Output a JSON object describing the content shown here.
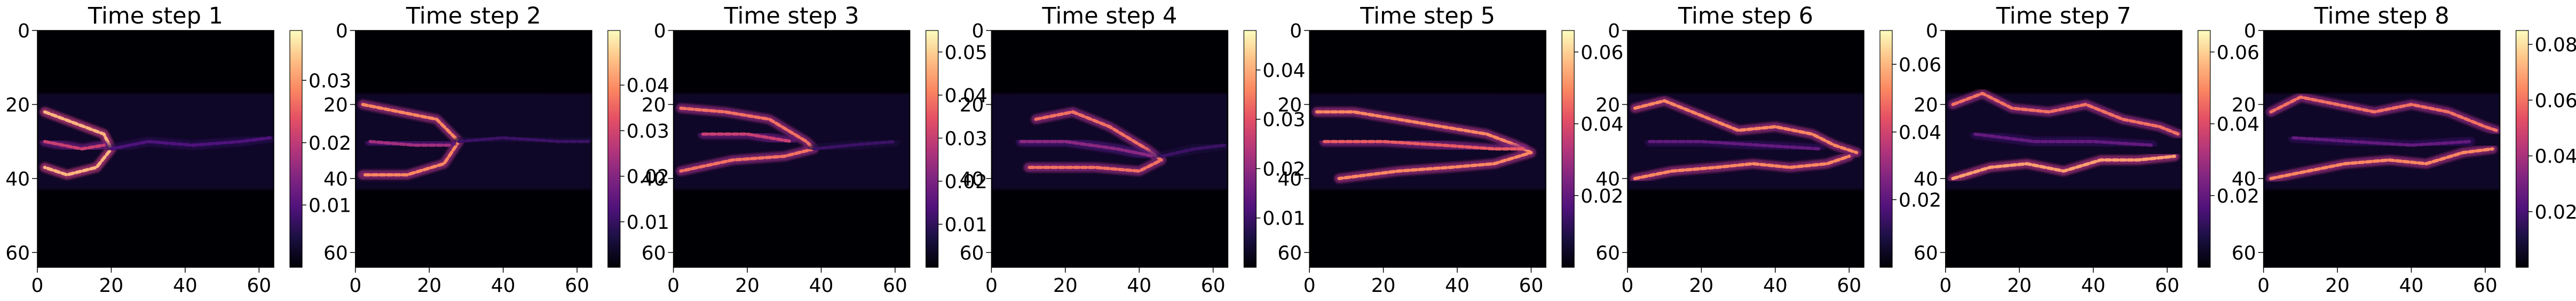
{
  "chart_data": [
    {
      "type": "heatmap",
      "title": "Time step 1",
      "x_ticks": [
        "0",
        "20",
        "40",
        "60"
      ],
      "y_ticks": [
        "0",
        "20",
        "40",
        "60"
      ],
      "colorbar_ticks": [
        "0.01",
        "0.02",
        "0.03"
      ],
      "colorbar_range": [
        0,
        0.038
      ],
      "colormap": "magma",
      "data_extent": [
        0,
        64
      ],
      "structure": "bright crescent front near x≈18, y≈20–40, faint wake extending right"
    },
    {
      "type": "heatmap",
      "title": "Time step 2",
      "x_ticks": [
        "0",
        "20",
        "40",
        "60"
      ],
      "y_ticks": [
        "0",
        "20",
        "40",
        "60"
      ],
      "colorbar_ticks": [
        "0.01",
        "0.02",
        "0.03",
        "0.04"
      ],
      "colorbar_range": [
        0,
        0.052
      ],
      "colormap": "magma",
      "data_extent": [
        0,
        64
      ],
      "structure": "crescent front near x≈25, y≈20–40"
    },
    {
      "type": "heatmap",
      "title": "Time step 3",
      "x_ticks": [
        "0",
        "20",
        "40",
        "60"
      ],
      "y_ticks": [
        "0",
        "20",
        "40",
        "60"
      ],
      "colorbar_ticks": [
        "0.01",
        "0.02",
        "0.03",
        "0.04",
        "0.05"
      ],
      "colorbar_range": [
        0,
        0.055
      ],
      "colormap": "magma",
      "data_extent": [
        0,
        64
      ],
      "structure": "front near x≈38, y≈25–35 with filaments"
    },
    {
      "type": "heatmap",
      "title": "Time step 4",
      "x_ticks": [
        "0",
        "20",
        "40",
        "60"
      ],
      "y_ticks": [
        "0",
        "20",
        "40",
        "60"
      ],
      "colorbar_ticks": [
        "0.01",
        "0.02",
        "0.03",
        "0.04"
      ],
      "colorbar_range": [
        0,
        0.048
      ],
      "colormap": "magma",
      "data_extent": [
        0,
        64
      ],
      "structure": "diagonal filament from (20,25) to (45,35)"
    },
    {
      "type": "heatmap",
      "title": "Time step 5",
      "x_ticks": [
        "0",
        "20",
        "40",
        "60"
      ],
      "y_ticks": [
        "0",
        "20",
        "40",
        "60"
      ],
      "colorbar_ticks": [
        "0.02",
        "0.04",
        "0.06"
      ],
      "colorbar_range": [
        0,
        0.066
      ],
      "colormap": "magma",
      "data_extent": [
        0,
        64
      ],
      "structure": "elongated plume y≈22–40, bright tip near x≈58, y≈32"
    },
    {
      "type": "heatmap",
      "title": "Time step 6",
      "x_ticks": [
        "0",
        "20",
        "40",
        "60"
      ],
      "y_ticks": [
        "0",
        "20",
        "40",
        "60"
      ],
      "colorbar_ticks": [
        "0.02",
        "0.04",
        "0.06"
      ],
      "colorbar_range": [
        0,
        0.07
      ],
      "colormap": "magma",
      "data_extent": [
        0,
        64
      ],
      "structure": "two wavy filaments y≈20 and y≈40 converging near x≈55"
    },
    {
      "type": "heatmap",
      "title": "Time step 7",
      "x_ticks": [
        "0",
        "20",
        "40",
        "60"
      ],
      "y_ticks": [
        "0",
        "20",
        "40",
        "60"
      ],
      "colorbar_ticks": [
        "0.02",
        "0.04",
        "0.06"
      ],
      "colorbar_range": [
        0,
        0.066
      ],
      "colormap": "magma",
      "data_extent": [
        0,
        64
      ],
      "structure": "wavy boundary filaments y≈18–40 across full width"
    },
    {
      "type": "heatmap",
      "title": "Time step 8",
      "x_ticks": [
        "0",
        "20",
        "40",
        "60"
      ],
      "y_ticks": [
        "0",
        "20",
        "40",
        "60"
      ],
      "colorbar_ticks": [
        "0.02",
        "0.04",
        "0.06",
        "0.08"
      ],
      "colorbar_range": [
        0,
        0.085
      ],
      "colormap": "magma",
      "data_extent": [
        0,
        64
      ],
      "structure": "wavy filaments y≈18–42 across full width"
    }
  ]
}
